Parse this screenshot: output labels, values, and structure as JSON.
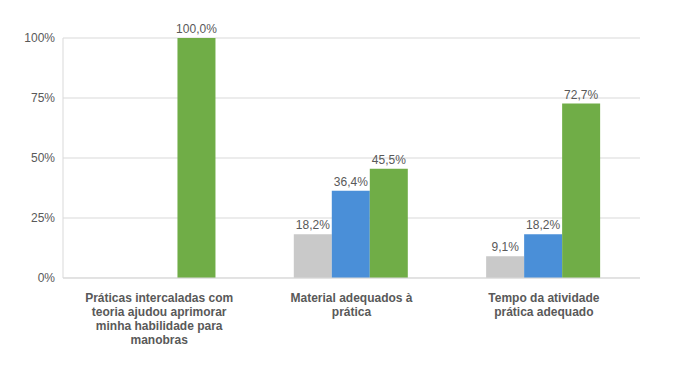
{
  "chart_data": {
    "type": "bar",
    "categories": [
      "Práticas intercaladas com teoria ajudou aprimorar minha habilidade para manobras",
      "Material adequados à prática",
      "Tempo da atividade prática adequado"
    ],
    "series": [
      {
        "color": "#c9c9c9",
        "values": [
          null,
          18.2,
          9.1
        ],
        "value_labels": [
          null,
          "18,2%",
          "9,1%"
        ]
      },
      {
        "color": "#4a8fd8",
        "values": [
          null,
          36.4,
          18.2
        ],
        "value_labels": [
          null,
          "36,4%",
          "18,2%"
        ]
      },
      {
        "color": "#70ad47",
        "values": [
          100.0,
          45.5,
          72.7
        ],
        "value_labels": [
          "100,0%",
          "45,5%",
          "72,7%"
        ]
      }
    ],
    "ylim": [
      0,
      100
    ],
    "yticks": [
      {
        "value": 0,
        "label": "0%"
      },
      {
        "value": 25,
        "label": "25%"
      },
      {
        "value": 50,
        "label": "50%"
      },
      {
        "value": 75,
        "label": "75%"
      },
      {
        "value": 100,
        "label": "100%"
      }
    ],
    "grid": true,
    "data_labels": true
  }
}
